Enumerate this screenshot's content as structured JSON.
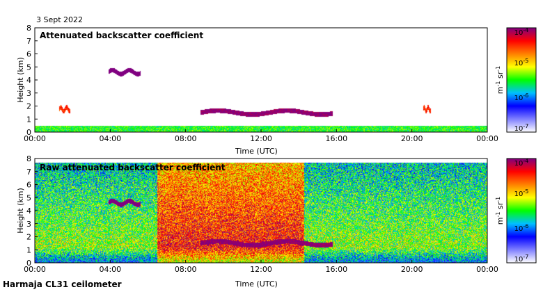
{
  "date_label": "3 Sept 2022",
  "footer_label": "Harmaja CL31 ceilometer",
  "colormap": [
    "#ffffff",
    "#7f7fff",
    "#0000ff",
    "#00bfff",
    "#00ff00",
    "#ffff00",
    "#ff8000",
    "#ff0000",
    "#800080"
  ],
  "chart_data": [
    {
      "type": "heatmap",
      "title": "Attenuated backscatter coefficient",
      "xlabel": "Time (UTC)",
      "ylabel": "Height (km)",
      "xlim": [
        0,
        24
      ],
      "ylim": [
        0,
        8
      ],
      "xtick_labels": [
        "00:00",
        "04:00",
        "08:00",
        "12:00",
        "16:00",
        "20:00",
        "00:00"
      ],
      "ytick_labels": [
        "0",
        "1",
        "2",
        "3",
        "4",
        "5",
        "6",
        "7",
        "8"
      ],
      "colorbar": {
        "scale": "log",
        "tick_labels": [
          "10^-7",
          "10^-6",
          "10^-5",
          "10^-4"
        ],
        "unit": "m^-1 sr^-1",
        "range": [
          1e-07,
          0.0001
        ]
      },
      "features": [
        {
          "name": "near-surface layer",
          "t_start": 0,
          "t_end": 24,
          "h_top": 0.5,
          "level": 1.5
        },
        {
          "name": "aerosol layer",
          "t_start": 3.9,
          "t_end": 5.6,
          "h_center": 4.6,
          "level": 3.3
        },
        {
          "name": "cloud layer",
          "t_start": 8.8,
          "t_end": 15.8,
          "h_center": 1.5,
          "level": 3.0
        },
        {
          "name": "cloud patch",
          "t_start": 1.3,
          "t_end": 1.9,
          "h_center": 1.75,
          "level": 2.5
        },
        {
          "name": "cloud patch",
          "t_start": 20.6,
          "t_end": 21.0,
          "h_center": 1.75,
          "level": 2.5
        }
      ]
    },
    {
      "type": "heatmap",
      "title": "Raw attenuated backscatter coefficient",
      "xlabel": "Time (UTC)",
      "ylabel": "Height (km)",
      "xlim": [
        0,
        24
      ],
      "ylim": [
        0,
        8
      ],
      "xtick_labels": [
        "00:00",
        "04:00",
        "08:00",
        "12:00",
        "16:00",
        "20:00",
        "00:00"
      ],
      "ytick_labels": [
        "0",
        "1",
        "2",
        "3",
        "4",
        "5",
        "6",
        "7",
        "8"
      ],
      "colorbar": {
        "scale": "log",
        "tick_labels": [
          "10^-7",
          "10^-6",
          "10^-5",
          "10^-4"
        ],
        "unit": "m^-1 sr^-1",
        "range": [
          1e-07,
          0.0001
        ]
      },
      "features": [
        {
          "name": "noise field",
          "t_start": 0,
          "t_end": 24,
          "h_top": 7.7,
          "level": 1.8
        },
        {
          "name": "high noise",
          "t_start": 6.5,
          "t_end": 14.3,
          "h_top": 7.7,
          "level": 2.7
        },
        {
          "name": "aerosol layer",
          "t_start": 3.9,
          "t_end": 5.6,
          "h_center": 4.6,
          "level": 3.3
        },
        {
          "name": "cloud layer",
          "t_start": 8.8,
          "t_end": 15.8,
          "h_center": 1.5,
          "level": 3.0
        }
      ]
    }
  ]
}
